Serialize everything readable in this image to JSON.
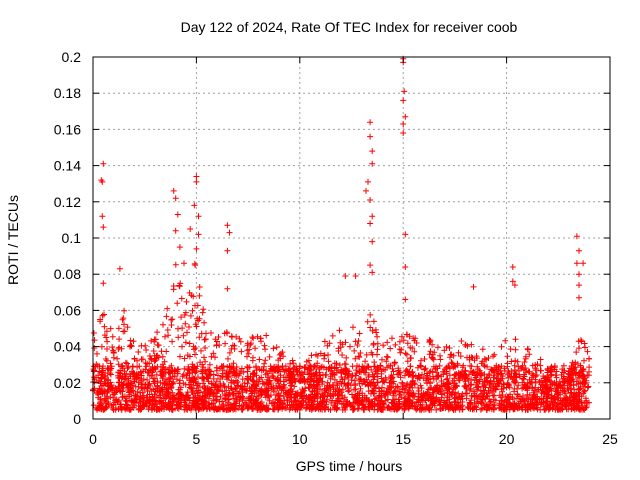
{
  "chart_data": {
    "type": "scatter",
    "title": "Day 122 of 2024, Rate Of TEC Index for receiver coob",
    "xlabel": "GPS time / hours",
    "ylabel": "ROTI / TECUs",
    "xlim": [
      0,
      25
    ],
    "ylim": [
      0,
      0.2
    ],
    "x_ticks": [
      "0",
      "5",
      "10",
      "15",
      "20",
      "25"
    ],
    "y_ticks": [
      "0",
      "0.02",
      "0.04",
      "0.06",
      "0.08",
      "0.1",
      "0.12",
      "0.14",
      "0.16",
      "0.18",
      "0.2"
    ],
    "grid": true,
    "marker": "+",
    "color": "#ff0000",
    "series": [
      {
        "name": "ROTI",
        "x_range_hours": [
          0,
          24
        ],
        "baseline_range": [
          0.005,
          0.04
        ],
        "envelope": [
          {
            "x": 0.0,
            "upper": 0.05
          },
          {
            "x": 0.5,
            "upper": 0.06
          },
          {
            "x": 1.0,
            "upper": 0.05
          },
          {
            "x": 1.5,
            "upper": 0.06
          },
          {
            "x": 2.0,
            "upper": 0.045
          },
          {
            "x": 2.5,
            "upper": 0.05
          },
          {
            "x": 3.0,
            "upper": 0.05
          },
          {
            "x": 3.5,
            "upper": 0.055
          },
          {
            "x": 4.0,
            "upper": 0.09
          },
          {
            "x": 4.5,
            "upper": 0.07
          },
          {
            "x": 5.0,
            "upper": 0.09
          },
          {
            "x": 5.5,
            "upper": 0.05
          },
          {
            "x": 6.0,
            "upper": 0.045
          },
          {
            "x": 6.5,
            "upper": 0.05
          },
          {
            "x": 7.0,
            "upper": 0.045
          },
          {
            "x": 7.5,
            "upper": 0.045
          },
          {
            "x": 8.0,
            "upper": 0.05
          },
          {
            "x": 8.5,
            "upper": 0.045
          },
          {
            "x": 9.0,
            "upper": 0.04
          },
          {
            "x": 9.5,
            "upper": 0.035
          },
          {
            "x": 10.0,
            "upper": 0.03
          },
          {
            "x": 10.5,
            "upper": 0.035
          },
          {
            "x": 11.0,
            "upper": 0.045
          },
          {
            "x": 11.5,
            "upper": 0.045
          },
          {
            "x": 12.0,
            "upper": 0.05
          },
          {
            "x": 12.5,
            "upper": 0.055
          },
          {
            "x": 13.0,
            "upper": 0.05
          },
          {
            "x": 13.5,
            "upper": 0.06
          },
          {
            "x": 14.0,
            "upper": 0.045
          },
          {
            "x": 14.5,
            "upper": 0.045
          },
          {
            "x": 15.0,
            "upper": 0.05
          },
          {
            "x": 15.5,
            "upper": 0.045
          },
          {
            "x": 16.0,
            "upper": 0.045
          },
          {
            "x": 16.5,
            "upper": 0.045
          },
          {
            "x": 17.0,
            "upper": 0.04
          },
          {
            "x": 17.5,
            "upper": 0.04
          },
          {
            "x": 18.0,
            "upper": 0.045
          },
          {
            "x": 18.5,
            "upper": 0.04
          },
          {
            "x": 19.0,
            "upper": 0.04
          },
          {
            "x": 19.5,
            "upper": 0.035
          },
          {
            "x": 20.0,
            "upper": 0.045
          },
          {
            "x": 20.5,
            "upper": 0.045
          },
          {
            "x": 21.0,
            "upper": 0.04
          },
          {
            "x": 21.5,
            "upper": 0.035
          },
          {
            "x": 22.0,
            "upper": 0.03
          },
          {
            "x": 22.5,
            "upper": 0.025
          },
          {
            "x": 23.0,
            "upper": 0.025
          },
          {
            "x": 23.5,
            "upper": 0.045
          },
          {
            "x": 24.0,
            "upper": 0.04
          }
        ],
        "notable_points": [
          {
            "x": 0.5,
            "y": 0.141
          },
          {
            "x": 0.4,
            "y": 0.132
          },
          {
            "x": 0.45,
            "y": 0.131
          },
          {
            "x": 0.45,
            "y": 0.112
          },
          {
            "x": 0.5,
            "y": 0.106
          },
          {
            "x": 0.5,
            "y": 0.075
          },
          {
            "x": 1.3,
            "y": 0.083
          },
          {
            "x": 3.9,
            "y": 0.126
          },
          {
            "x": 4.0,
            "y": 0.122
          },
          {
            "x": 4.1,
            "y": 0.113
          },
          {
            "x": 4.0,
            "y": 0.104
          },
          {
            "x": 4.2,
            "y": 0.095
          },
          {
            "x": 4.4,
            "y": 0.086
          },
          {
            "x": 4.7,
            "y": 0.105
          },
          {
            "x": 4.9,
            "y": 0.118
          },
          {
            "x": 5.0,
            "y": 0.134
          },
          {
            "x": 5.0,
            "y": 0.131
          },
          {
            "x": 5.1,
            "y": 0.112
          },
          {
            "x": 5.1,
            "y": 0.102
          },
          {
            "x": 5.0,
            "y": 0.094
          },
          {
            "x": 6.5,
            "y": 0.107
          },
          {
            "x": 6.6,
            "y": 0.103
          },
          {
            "x": 6.5,
            "y": 0.093
          },
          {
            "x": 6.5,
            "y": 0.072
          },
          {
            "x": 12.2,
            "y": 0.079
          },
          {
            "x": 12.7,
            "y": 0.079
          },
          {
            "x": 13.2,
            "y": 0.126
          },
          {
            "x": 13.3,
            "y": 0.131
          },
          {
            "x": 13.4,
            "y": 0.164
          },
          {
            "x": 13.4,
            "y": 0.156
          },
          {
            "x": 13.5,
            "y": 0.148
          },
          {
            "x": 13.5,
            "y": 0.141
          },
          {
            "x": 13.4,
            "y": 0.121
          },
          {
            "x": 13.5,
            "y": 0.112
          },
          {
            "x": 13.4,
            "y": 0.108
          },
          {
            "x": 13.5,
            "y": 0.098
          },
          {
            "x": 13.4,
            "y": 0.085
          },
          {
            "x": 13.5,
            "y": 0.081
          },
          {
            "x": 15.0,
            "y": 0.199
          },
          {
            "x": 15.0,
            "y": 0.197
          },
          {
            "x": 15.05,
            "y": 0.181
          },
          {
            "x": 15.0,
            "y": 0.176
          },
          {
            "x": 15.1,
            "y": 0.167
          },
          {
            "x": 15.0,
            "y": 0.163
          },
          {
            "x": 15.0,
            "y": 0.158
          },
          {
            "x": 15.1,
            "y": 0.102
          },
          {
            "x": 15.1,
            "y": 0.084
          },
          {
            "x": 15.1,
            "y": 0.066
          },
          {
            "x": 18.4,
            "y": 0.073
          },
          {
            "x": 20.3,
            "y": 0.084
          },
          {
            "x": 20.3,
            "y": 0.076
          },
          {
            "x": 20.4,
            "y": 0.074
          },
          {
            "x": 23.4,
            "y": 0.101
          },
          {
            "x": 23.5,
            "y": 0.093
          },
          {
            "x": 23.4,
            "y": 0.086
          },
          {
            "x": 23.7,
            "y": 0.086
          },
          {
            "x": 23.5,
            "y": 0.08
          },
          {
            "x": 23.5,
            "y": 0.074
          },
          {
            "x": 23.5,
            "y": 0.067
          }
        ]
      }
    ]
  }
}
